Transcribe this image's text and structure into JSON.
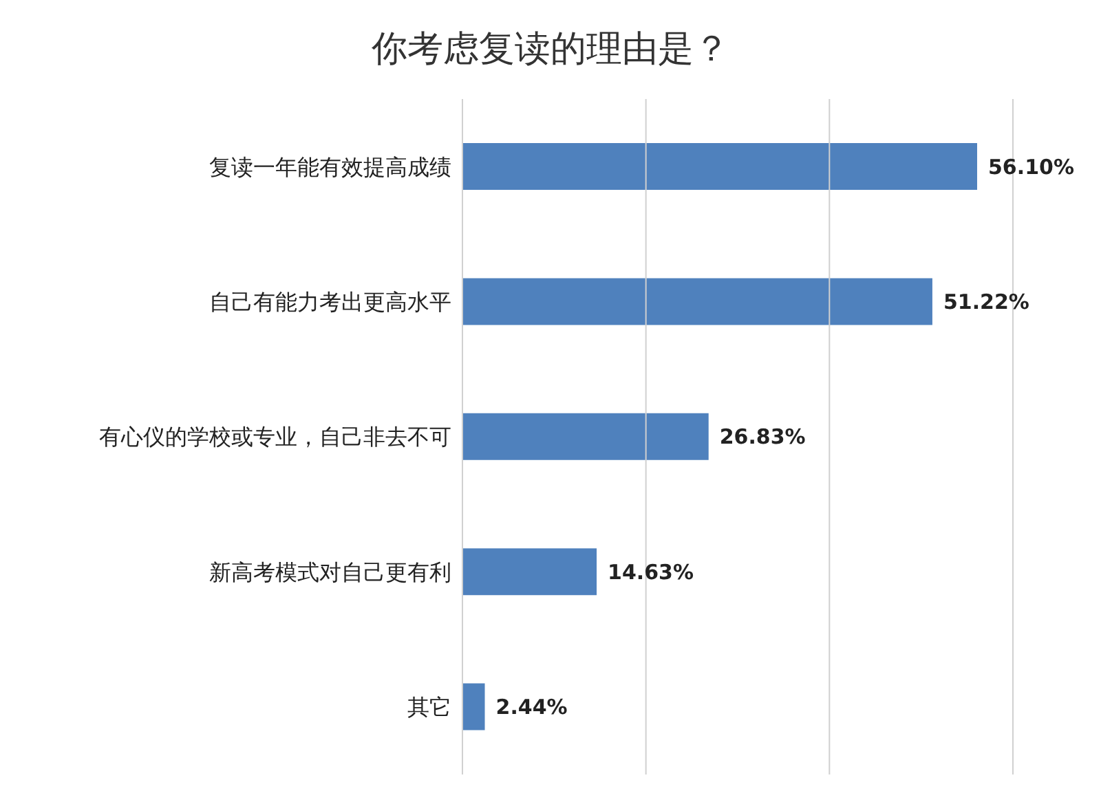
{
  "chart_data": {
    "type": "bar",
    "orientation": "horizontal",
    "title": "你考虑复读的理由是？",
    "categories": [
      "复读一年能有效提高成绩",
      "自己有能力考出更高水平",
      "有心仪的学校或专业，自己非去不可",
      "新高考模式对自己更有利",
      "其它"
    ],
    "values": [
      56.1,
      51.22,
      26.83,
      14.63,
      2.44
    ],
    "value_labels": [
      "56.10%",
      "51.22%",
      "26.83%",
      "14.63%",
      "2.44%"
    ],
    "color": "#4f81bd",
    "xlim": [
      0,
      60
    ],
    "xticks": [
      {
        "value": 0,
        "label": null
      },
      {
        "value": 20,
        "label": null
      },
      {
        "value": 40,
        "label": null
      },
      {
        "value": 60,
        "label": null
      }
    ],
    "tick_labels": "y",
    "grid": "x",
    "legend": false
  }
}
